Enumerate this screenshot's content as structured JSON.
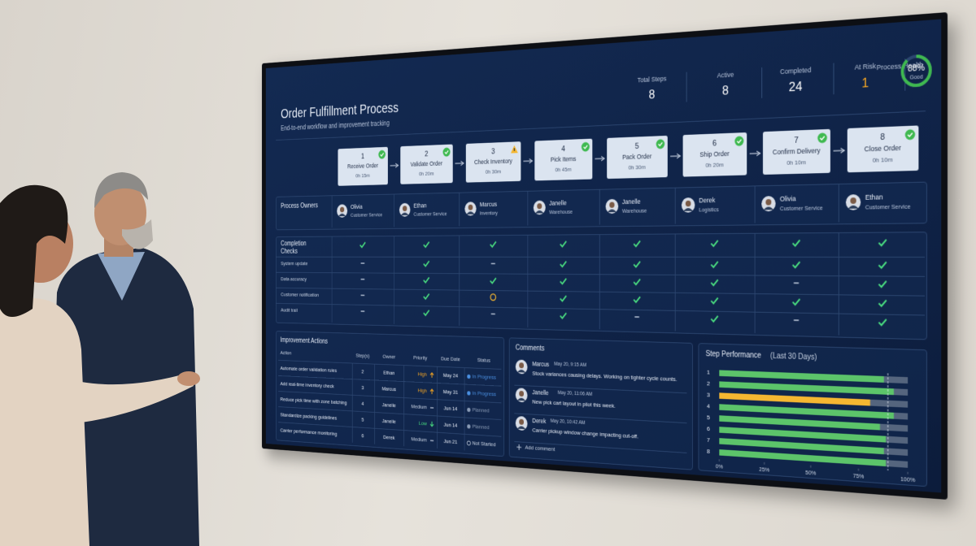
{
  "header": {
    "title": "Order Fulfillment Process",
    "subtitle": "End-to-end workflow and improvement tracking"
  },
  "stats": [
    {
      "label": "Total Steps",
      "value": 8,
      "color": "#ffffff"
    },
    {
      "label": "Active",
      "value": 8,
      "color": "#ffffff"
    },
    {
      "label": "Completed",
      "value": 24,
      "color": "#ffffff"
    },
    {
      "label": "At Risk",
      "value": 1,
      "color": "#f5a623"
    }
  ],
  "health": {
    "label": "Process Health",
    "value": 88,
    "value_label": "88%",
    "status": "Good",
    "color": "#3fb950"
  },
  "steps": [
    {
      "number": "1",
      "name": "Receive Order",
      "time": "0h 15m",
      "state": "done"
    },
    {
      "number": "2",
      "name": "Validate Order",
      "time": "0h 20m",
      "state": "done"
    },
    {
      "number": "3",
      "name": "Check Inventory",
      "time": "0h 30m",
      "state": "warning"
    },
    {
      "number": "4",
      "name": "Pick Items",
      "time": "0h 45m",
      "state": "done"
    },
    {
      "number": "5",
      "name": "Pack Order",
      "time": "0h 30m",
      "state": "done"
    },
    {
      "number": "6",
      "name": "Ship Order",
      "time": "0h 20m",
      "state": "done"
    },
    {
      "number": "7",
      "name": "Confirm Delivery",
      "time": "0h 10m",
      "state": "done"
    },
    {
      "number": "8",
      "name": "Close Order",
      "time": "0h 10m",
      "state": "done"
    }
  ],
  "owners": {
    "label": "Process Owners",
    "people": [
      {
        "name": "Olivia",
        "role": "Customer Service"
      },
      {
        "name": "Ethan",
        "role": "Customer Service"
      },
      {
        "name": "Marcus",
        "role": "Inventory"
      },
      {
        "name": "Janelle",
        "role": "Warehouse"
      },
      {
        "name": "Janelle",
        "role": "Warehouse"
      },
      {
        "name": "Derek",
        "role": "Logistics"
      },
      {
        "name": "Olivia",
        "role": "Customer Service"
      },
      {
        "name": "Ethan",
        "role": "Customer Service"
      }
    ]
  },
  "checks": {
    "label": "Completion Checks",
    "summary": [
      "done",
      "done",
      "done",
      "done",
      "done",
      "done",
      "done",
      "done"
    ],
    "rows": [
      {
        "label": "System update",
        "cells": [
          "none",
          "done",
          "none",
          "done",
          "done",
          "done",
          "done",
          "done"
        ]
      },
      {
        "label": "Data accuracy",
        "cells": [
          "none",
          "done",
          "done",
          "done",
          "done",
          "done",
          "none",
          "done"
        ]
      },
      {
        "label": "Customer notification",
        "cells": [
          "none",
          "done",
          "pending",
          "done",
          "done",
          "done",
          "done",
          "done"
        ]
      },
      {
        "label": "Audit trail",
        "cells": [
          "none",
          "done",
          "none",
          "done",
          "none",
          "done",
          "none",
          "done"
        ]
      }
    ]
  },
  "actions": {
    "title": "Improvement Actions",
    "columns": [
      "Action",
      "Step(s)",
      "Owner",
      "Priority",
      "Due Date",
      "Status"
    ],
    "rows": [
      {
        "action": "Automate order validation rules",
        "steps": "2",
        "owner": "Ethan",
        "priority": "High",
        "arrow": "up",
        "priority_color": "#f5a623",
        "due": "May 24",
        "status": "In Progress",
        "status_icon": "dot",
        "status_color": "#4a90e2"
      },
      {
        "action": "Add real-time inventory check",
        "steps": "3",
        "owner": "Marcus",
        "priority": "High",
        "arrow": "up",
        "priority_color": "#f5a623",
        "due": "May 31",
        "status": "In Progress",
        "status_icon": "dot",
        "status_color": "#4a90e2"
      },
      {
        "action": "Reduce pick time with zone batching",
        "steps": "4",
        "owner": "Janelle",
        "priority": "Medium",
        "arrow": "flat",
        "priority_color": "#c9d3e3",
        "due": "Jun 14",
        "status": "Planned",
        "status_icon": "dot",
        "status_color": "#8a9bb5"
      },
      {
        "action": "Standardize packing guidelines",
        "steps": "5",
        "owner": "Janelle",
        "priority": "Low",
        "arrow": "down",
        "priority_color": "#4ade80",
        "due": "Jun 14",
        "status": "Planned",
        "status_icon": "dot",
        "status_color": "#8a9bb5"
      },
      {
        "action": "Carrier performance monitoring",
        "steps": "6",
        "owner": "Derek",
        "priority": "Medium",
        "arrow": "flat",
        "priority_color": "#c9d3e3",
        "due": "Jun 21",
        "status": "Not Started",
        "status_icon": "ring",
        "status_color": "#c9d3e3"
      }
    ]
  },
  "comments": {
    "title": "Comments",
    "add_label": "Add comment",
    "items": [
      {
        "author": "Marcus",
        "time": "May 20, 9:15 AM",
        "text": "Stock variances causing delays. Working on tighter cycle counts."
      },
      {
        "author": "Janelle",
        "time": "May 20, 11:06 AM",
        "text": "New pick cart layout in pilot this week."
      },
      {
        "author": "Derek",
        "time": "May 20, 10:42 AM",
        "text": "Carrier pickup window change impacting cut-off."
      }
    ]
  },
  "chart_data": {
    "type": "bar",
    "orientation": "horizontal",
    "title": "Step Performance",
    "subtitle": "(Last 30 Days)",
    "categories": [
      "1",
      "2",
      "3",
      "4",
      "5",
      "6",
      "7",
      "8"
    ],
    "values": [
      88,
      93,
      81,
      93,
      86,
      89,
      88,
      89
    ],
    "colors": [
      "#5cc46a",
      "#5cc46a",
      "#f5b731",
      "#5cc46a",
      "#5cc46a",
      "#5cc46a",
      "#5cc46a",
      "#5cc46a"
    ],
    "track_color": "#55657e",
    "target": 90,
    "xlim": [
      0,
      100
    ],
    "xticks": [
      {
        "value": 0,
        "label": "0%"
      },
      {
        "value": 25,
        "label": "25%"
      },
      {
        "value": 50,
        "label": "50%"
      },
      {
        "value": 75,
        "label": "75%"
      },
      {
        "value": 100,
        "label": "100%"
      }
    ]
  }
}
